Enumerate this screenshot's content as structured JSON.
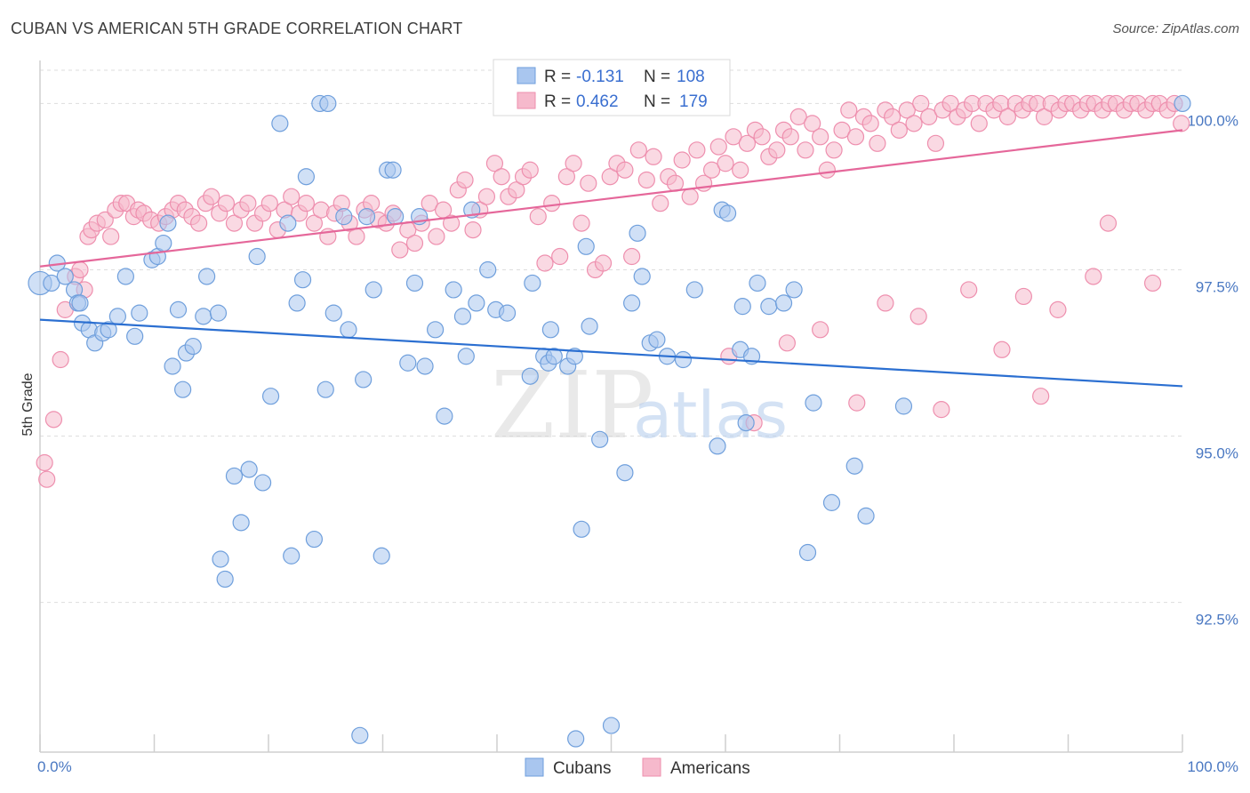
{
  "header": {
    "title": "CUBAN VS AMERICAN 5TH GRADE CORRELATION CHART",
    "source": "Source: ZipAtlas.com"
  },
  "watermark": {
    "part1": "ZIP",
    "part2": "atlas"
  },
  "legend": {
    "rows": [
      {
        "r_label": "R =",
        "r_value": "-0.131",
        "n_label": "N =",
        "n_value": "108"
      },
      {
        "r_label": "R =",
        "r_value": "0.462",
        "n_label": "N =",
        "n_value": "179"
      }
    ]
  },
  "bottom_legend": [
    "Cubans",
    "Americans"
  ],
  "colors": {
    "cubans_fill": "#a9c6ef",
    "cubans_stroke": "#6f9fdc",
    "cubans_line": "#2b6fd1",
    "americans_fill": "#f6b9cc",
    "americans_stroke": "#ee8fae",
    "americans_line": "#e5679a",
    "grid": "#dddddd",
    "axis_label": "#4a78c2"
  },
  "chart_data": {
    "type": "scatter",
    "title": "CUBAN VS AMERICAN 5TH GRADE CORRELATION CHART",
    "xlabel": "",
    "ylabel": "5th Grade",
    "xlim": [
      0,
      100
    ],
    "ylim": [
      90.25,
      100.5
    ],
    "x_tick_labels": [
      "0.0%",
      "100.0%"
    ],
    "y_ticks": [
      92.5,
      95.0,
      97.5,
      100.0
    ],
    "y_tick_labels": [
      "92.5%",
      "95.0%",
      "97.5%",
      "100.0%"
    ],
    "grid": "horizontal dashed",
    "legend_position": "top-center",
    "series": [
      {
        "name": "Cubans",
        "trend": {
          "x": [
            0,
            100
          ],
          "y": [
            96.75,
            95.75
          ]
        },
        "points": [
          [
            0.0,
            97.3
          ],
          [
            1.0,
            97.3
          ],
          [
            1.5,
            97.6
          ],
          [
            2.2,
            97.4
          ],
          [
            3.0,
            97.2
          ],
          [
            3.3,
            97.0
          ],
          [
            3.5,
            97.0
          ],
          [
            3.7,
            96.7
          ],
          [
            4.3,
            96.6
          ],
          [
            4.8,
            96.4
          ],
          [
            5.5,
            96.55
          ],
          [
            6.0,
            96.6
          ],
          [
            6.8,
            96.8
          ],
          [
            7.5,
            97.4
          ],
          [
            8.3,
            96.5
          ],
          [
            8.7,
            96.85
          ],
          [
            9.8,
            97.65
          ],
          [
            10.3,
            97.7
          ],
          [
            10.8,
            97.9
          ],
          [
            11.2,
            98.2
          ],
          [
            11.6,
            96.05
          ],
          [
            12.1,
            96.9
          ],
          [
            12.5,
            95.7
          ],
          [
            12.8,
            96.25
          ],
          [
            13.4,
            96.35
          ],
          [
            14.3,
            96.8
          ],
          [
            14.6,
            97.4
          ],
          [
            15.6,
            96.85
          ],
          [
            15.8,
            93.15
          ],
          [
            16.2,
            92.85
          ],
          [
            17.0,
            94.4
          ],
          [
            17.6,
            93.7
          ],
          [
            18.3,
            94.5
          ],
          [
            19.0,
            97.7
          ],
          [
            19.5,
            94.3
          ],
          [
            20.2,
            95.6
          ],
          [
            21.0,
            99.7
          ],
          [
            21.7,
            98.2
          ],
          [
            22.0,
            93.2
          ],
          [
            22.5,
            97.0
          ],
          [
            23.0,
            97.35
          ],
          [
            23.3,
            98.9
          ],
          [
            24.0,
            93.45
          ],
          [
            24.5,
            100.0
          ],
          [
            25.0,
            95.7
          ],
          [
            25.2,
            100.0
          ],
          [
            25.7,
            96.85
          ],
          [
            26.6,
            98.3
          ],
          [
            27.0,
            96.6
          ],
          [
            28.0,
            90.5
          ],
          [
            28.3,
            95.85
          ],
          [
            29.2,
            97.2
          ],
          [
            28.6,
            98.3
          ],
          [
            29.9,
            93.2
          ],
          [
            30.4,
            99.0
          ],
          [
            30.9,
            99.0
          ],
          [
            31.1,
            98.3
          ],
          [
            32.2,
            96.1
          ],
          [
            32.8,
            97.3
          ],
          [
            33.2,
            98.3
          ],
          [
            33.7,
            96.05
          ],
          [
            34.6,
            96.6
          ],
          [
            35.4,
            95.3
          ],
          [
            36.2,
            97.2
          ],
          [
            37.0,
            96.8
          ],
          [
            37.3,
            96.2
          ],
          [
            37.8,
            98.4
          ],
          [
            38.2,
            97.0
          ],
          [
            39.2,
            97.5
          ],
          [
            39.9,
            96.9
          ],
          [
            40.9,
            96.85
          ],
          [
            42.9,
            95.9
          ],
          [
            43.1,
            97.3
          ],
          [
            44.1,
            96.2
          ],
          [
            44.5,
            96.1
          ],
          [
            44.7,
            96.6
          ],
          [
            45.0,
            96.2
          ],
          [
            46.2,
            96.05
          ],
          [
            46.8,
            96.2
          ],
          [
            46.9,
            90.45
          ],
          [
            47.4,
            93.6
          ],
          [
            47.8,
            97.85
          ],
          [
            48.1,
            96.65
          ],
          [
            49.0,
            94.95
          ],
          [
            50.0,
            90.65
          ],
          [
            51.2,
            94.45
          ],
          [
            51.8,
            97.0
          ],
          [
            52.3,
            98.05
          ],
          [
            52.7,
            97.4
          ],
          [
            53.4,
            96.4
          ],
          [
            54.0,
            96.45
          ],
          [
            54.9,
            96.2
          ],
          [
            56.3,
            96.15
          ],
          [
            57.3,
            97.2
          ],
          [
            59.3,
            94.85
          ],
          [
            59.7,
            98.4
          ],
          [
            60.2,
            98.35
          ],
          [
            61.3,
            96.3
          ],
          [
            61.5,
            96.95
          ],
          [
            61.8,
            95.2
          ],
          [
            62.3,
            96.2
          ],
          [
            62.8,
            97.3
          ],
          [
            63.8,
            96.95
          ],
          [
            65.1,
            97.0
          ],
          [
            66.0,
            97.2
          ],
          [
            67.2,
            93.25
          ],
          [
            67.7,
            95.5
          ],
          [
            69.3,
            94.0
          ],
          [
            71.3,
            94.55
          ],
          [
            72.3,
            93.8
          ],
          [
            75.6,
            95.45
          ],
          [
            100.0,
            100.0
          ]
        ]
      },
      {
        "name": "Americans",
        "trend": {
          "x": [
            0,
            100
          ],
          "y": [
            97.55,
            99.6
          ]
        },
        "points": [
          [
            0.4,
            94.6
          ],
          [
            0.6,
            94.35
          ],
          [
            1.2,
            95.25
          ],
          [
            1.8,
            96.15
          ],
          [
            2.2,
            96.9
          ],
          [
            3.1,
            97.4
          ],
          [
            3.5,
            97.5
          ],
          [
            3.9,
            97.2
          ],
          [
            4.2,
            98.0
          ],
          [
            4.5,
            98.1
          ],
          [
            5.0,
            98.2
          ],
          [
            5.7,
            98.25
          ],
          [
            6.2,
            98.0
          ],
          [
            6.6,
            98.4
          ],
          [
            7.1,
            98.5
          ],
          [
            7.6,
            98.5
          ],
          [
            8.2,
            98.3
          ],
          [
            8.6,
            98.4
          ],
          [
            9.1,
            98.35
          ],
          [
            9.7,
            98.25
          ],
          [
            10.4,
            98.2
          ],
          [
            11.0,
            98.3
          ],
          [
            11.6,
            98.4
          ],
          [
            12.1,
            98.5
          ],
          [
            12.7,
            98.4
          ],
          [
            13.3,
            98.3
          ],
          [
            13.9,
            98.2
          ],
          [
            14.5,
            98.5
          ],
          [
            15.0,
            98.6
          ],
          [
            15.7,
            98.35
          ],
          [
            16.3,
            98.5
          ],
          [
            17.0,
            98.2
          ],
          [
            17.6,
            98.4
          ],
          [
            18.2,
            98.5
          ],
          [
            18.8,
            98.2
          ],
          [
            19.5,
            98.35
          ],
          [
            20.1,
            98.5
          ],
          [
            20.8,
            98.1
          ],
          [
            21.4,
            98.4
          ],
          [
            22.0,
            98.6
          ],
          [
            22.7,
            98.35
          ],
          [
            23.3,
            98.5
          ],
          [
            24.0,
            98.2
          ],
          [
            24.6,
            98.4
          ],
          [
            25.2,
            98.0
          ],
          [
            25.8,
            98.35
          ],
          [
            26.4,
            98.5
          ],
          [
            27.1,
            98.2
          ],
          [
            27.7,
            98.0
          ],
          [
            28.4,
            98.4
          ],
          [
            29.0,
            98.5
          ],
          [
            29.6,
            98.25
          ],
          [
            30.3,
            98.2
          ],
          [
            30.9,
            98.35
          ],
          [
            31.5,
            97.8
          ],
          [
            32.2,
            98.1
          ],
          [
            32.8,
            97.9
          ],
          [
            33.4,
            98.2
          ],
          [
            34.1,
            98.5
          ],
          [
            34.7,
            98.0
          ],
          [
            35.3,
            98.4
          ],
          [
            36.0,
            98.2
          ],
          [
            36.6,
            98.7
          ],
          [
            37.2,
            98.85
          ],
          [
            37.9,
            98.1
          ],
          [
            38.5,
            98.4
          ],
          [
            39.1,
            98.6
          ],
          [
            39.8,
            99.1
          ],
          [
            40.4,
            98.9
          ],
          [
            41.0,
            98.6
          ],
          [
            41.7,
            98.7
          ],
          [
            42.3,
            98.9
          ],
          [
            42.9,
            99.0
          ],
          [
            43.6,
            98.3
          ],
          [
            44.2,
            97.6
          ],
          [
            44.8,
            98.5
          ],
          [
            45.5,
            97.7
          ],
          [
            46.1,
            98.9
          ],
          [
            46.7,
            99.1
          ],
          [
            47.4,
            98.2
          ],
          [
            48.0,
            98.8
          ],
          [
            48.6,
            97.5
          ],
          [
            49.3,
            97.6
          ],
          [
            49.9,
            98.9
          ],
          [
            50.5,
            99.1
          ],
          [
            51.2,
            99.0
          ],
          [
            51.8,
            97.7
          ],
          [
            52.4,
            99.3
          ],
          [
            53.1,
            98.85
          ],
          [
            53.7,
            99.2
          ],
          [
            54.3,
            98.5
          ],
          [
            55.0,
            98.9
          ],
          [
            55.6,
            98.8
          ],
          [
            56.2,
            99.15
          ],
          [
            56.9,
            98.6
          ],
          [
            57.5,
            99.3
          ],
          [
            58.1,
            98.8
          ],
          [
            58.8,
            99.0
          ],
          [
            59.4,
            99.35
          ],
          [
            60.0,
            99.1
          ],
          [
            60.7,
            99.5
          ],
          [
            61.3,
            99.0
          ],
          [
            61.9,
            99.4
          ],
          [
            62.6,
            99.6
          ],
          [
            63.2,
            99.5
          ],
          [
            63.8,
            99.2
          ],
          [
            64.5,
            99.3
          ],
          [
            65.1,
            99.6
          ],
          [
            65.7,
            99.5
          ],
          [
            66.4,
            99.8
          ],
          [
            67.0,
            99.3
          ],
          [
            67.6,
            99.7
          ],
          [
            68.3,
            99.5
          ],
          [
            68.9,
            99.0
          ],
          [
            69.5,
            99.3
          ],
          [
            70.2,
            99.6
          ],
          [
            70.8,
            99.9
          ],
          [
            71.4,
            99.5
          ],
          [
            72.1,
            99.8
          ],
          [
            72.7,
            99.7
          ],
          [
            73.3,
            99.4
          ],
          [
            74.0,
            99.9
          ],
          [
            74.6,
            99.8
          ],
          [
            75.2,
            99.6
          ],
          [
            75.9,
            99.9
          ],
          [
            76.5,
            99.7
          ],
          [
            77.1,
            100.0
          ],
          [
            77.8,
            99.8
          ],
          [
            78.4,
            99.4
          ],
          [
            79.0,
            99.9
          ],
          [
            79.7,
            100.0
          ],
          [
            80.3,
            99.8
          ],
          [
            80.9,
            99.9
          ],
          [
            81.6,
            100.0
          ],
          [
            82.2,
            99.7
          ],
          [
            82.8,
            100.0
          ],
          [
            83.5,
            99.9
          ],
          [
            84.1,
            100.0
          ],
          [
            84.7,
            99.8
          ],
          [
            85.4,
            100.0
          ],
          [
            86.0,
            99.9
          ],
          [
            86.6,
            100.0
          ],
          [
            87.3,
            100.0
          ],
          [
            87.9,
            99.8
          ],
          [
            88.5,
            100.0
          ],
          [
            89.2,
            99.9
          ],
          [
            89.8,
            100.0
          ],
          [
            90.4,
            100.0
          ],
          [
            91.1,
            99.9
          ],
          [
            91.7,
            100.0
          ],
          [
            92.3,
            100.0
          ],
          [
            93.0,
            99.9
          ],
          [
            93.6,
            100.0
          ],
          [
            94.2,
            100.0
          ],
          [
            94.9,
            99.9
          ],
          [
            95.5,
            100.0
          ],
          [
            96.1,
            100.0
          ],
          [
            96.8,
            99.9
          ],
          [
            97.4,
            100.0
          ],
          [
            98.0,
            100.0
          ],
          [
            98.7,
            99.9
          ],
          [
            99.3,
            100.0
          ],
          [
            99.9,
            99.7
          ],
          [
            60.3,
            96.2
          ],
          [
            62.5,
            95.2
          ],
          [
            65.4,
            96.4
          ],
          [
            68.3,
            96.6
          ],
          [
            71.5,
            95.5
          ],
          [
            74.0,
            97.0
          ],
          [
            76.9,
            96.8
          ],
          [
            81.3,
            97.2
          ],
          [
            84.2,
            96.3
          ],
          [
            87.6,
            95.6
          ],
          [
            89.1,
            96.9
          ],
          [
            92.2,
            97.4
          ],
          [
            78.9,
            95.4
          ],
          [
            86.1,
            97.1
          ],
          [
            93.5,
            98.2
          ],
          [
            97.4,
            97.3
          ]
        ]
      }
    ]
  }
}
